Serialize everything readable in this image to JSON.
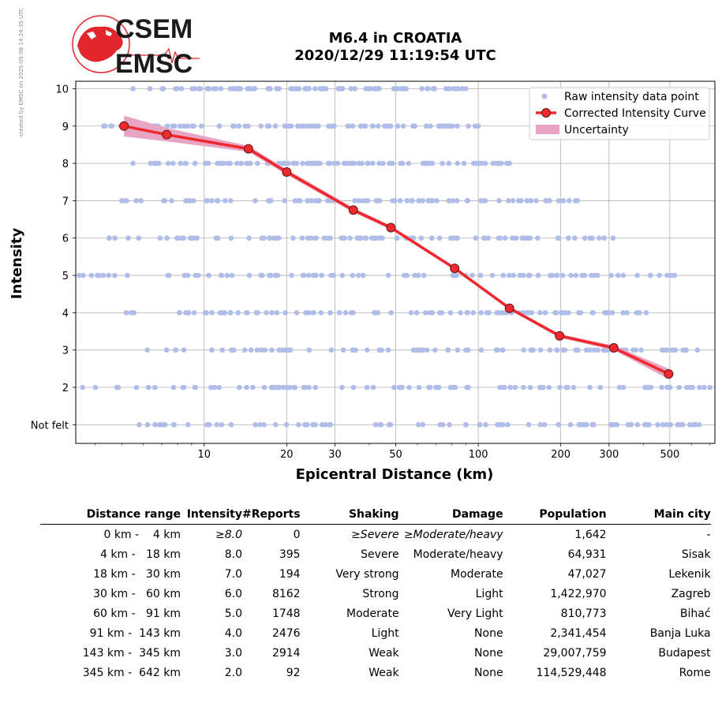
{
  "title_line1": "M6.4 in CROATIA",
  "title_line2": "2020/12/29 11:19:54 UTC",
  "logo_text_top": "CSEM",
  "logo_text_bottom": "EMSC",
  "creator_note": "created by EMSC on 2025-05-08 14:24:35 UTC",
  "colors": {
    "raw_points": "#b0bde8",
    "curve": "#f0282d",
    "uncertainty": "#e8a5c3",
    "marker_edge": "#5a1a1a",
    "logo_red": "#e3262b"
  },
  "chart_data": {
    "type": "line",
    "xlabel": "Epicentral Distance (km)",
    "ylabel": "Intensity",
    "x_scale": "log",
    "xlim": [
      3.4,
      730
    ],
    "ylim": [
      0.5,
      10.2
    ],
    "x_ticks": [
      10,
      20,
      30,
      50,
      100,
      200,
      300,
      500
    ],
    "y_ticks": [
      {
        "value": 1,
        "label": "Not felt"
      },
      {
        "value": 2,
        "label": "2"
      },
      {
        "value": 3,
        "label": "3"
      },
      {
        "value": 4,
        "label": "4"
      },
      {
        "value": 5,
        "label": "5"
      },
      {
        "value": 6,
        "label": "6"
      },
      {
        "value": 7,
        "label": "7"
      },
      {
        "value": 8,
        "label": "8"
      },
      {
        "value": 9,
        "label": "9"
      },
      {
        "value": 10,
        "label": "10"
      }
    ],
    "grid": true,
    "legend_position": "top-right",
    "legend": [
      "Raw intensity data point",
      "Corrected Intensity Curve",
      "Uncertainty"
    ],
    "raw_points": [
      {
        "y": 10,
        "x_min": 5.5,
        "x_max": 90
      },
      {
        "y": 9,
        "x_min": 4.3,
        "x_max": 100
      },
      {
        "y": 8,
        "x_min": 5.5,
        "x_max": 130
      },
      {
        "y": 7,
        "x_min": 5.0,
        "x_max": 230
      },
      {
        "y": 6,
        "x_min": 4.5,
        "x_max": 310
      },
      {
        "y": 5,
        "x_min": 3.5,
        "x_max": 520
      },
      {
        "y": 4,
        "x_min": 5.2,
        "x_max": 410
      },
      {
        "y": 3,
        "x_min": 6.2,
        "x_max": 630
      },
      {
        "y": 2,
        "x_min": 3.6,
        "x_max": 700
      },
      {
        "y": 1,
        "x_min": 5.8,
        "x_max": 640
      }
    ],
    "series": [
      {
        "name": "Corrected Intensity Curve",
        "x": [
          5.1,
          7.3,
          14.5,
          20.0,
          35.0,
          48.0,
          82.0,
          130.0,
          198.0,
          312.0,
          495.0
        ],
        "y": [
          9.0,
          8.77,
          8.39,
          7.77,
          6.75,
          6.28,
          5.19,
          4.12,
          3.38,
          3.06,
          2.36
        ],
        "upper": [
          9.28,
          8.95,
          8.47,
          7.84,
          6.81,
          6.33,
          5.23,
          4.16,
          3.43,
          3.12,
          2.5
        ],
        "lower": [
          8.72,
          8.59,
          8.31,
          7.7,
          6.69,
          6.23,
          5.15,
          4.08,
          3.33,
          3.0,
          2.22
        ]
      }
    ]
  },
  "table": {
    "headers": [
      "Distance range",
      "Intensity",
      "#Reports",
      "Shaking",
      "Damage",
      "Population",
      "Main city"
    ],
    "rows": [
      {
        "distance": "0 km -    4 km",
        "intensity": "≥8.0",
        "reports": "0",
        "shaking": "≥Severe",
        "damage": "≥Moderate/heavy",
        "population": "1,642",
        "city": "-"
      },
      {
        "distance": "4 km -   18 km",
        "intensity": "8.0",
        "reports": "395",
        "shaking": "Severe",
        "damage": "Moderate/heavy",
        "population": "64,931",
        "city": "Sisak"
      },
      {
        "distance": "18 km -   30 km",
        "intensity": "7.0",
        "reports": "194",
        "shaking": "Very strong",
        "damage": "Moderate",
        "population": "47,027",
        "city": "Lekenik"
      },
      {
        "distance": "30 km -   60 km",
        "intensity": "6.0",
        "reports": "8162",
        "shaking": "Strong",
        "damage": "Light",
        "population": "1,422,970",
        "city": "Zagreb"
      },
      {
        "distance": "60 km -   91 km",
        "intensity": "5.0",
        "reports": "1748",
        "shaking": "Moderate",
        "damage": "Very Light",
        "population": "810,773",
        "city": "Bihać"
      },
      {
        "distance": "91 km -  143 km",
        "intensity": "4.0",
        "reports": "2476",
        "shaking": "Light",
        "damage": "None",
        "population": "2,341,454",
        "city": "Banja Luka"
      },
      {
        "distance": "143 km -  345 km",
        "intensity": "3.0",
        "reports": "2914",
        "shaking": "Weak",
        "damage": "None",
        "population": "29,007,759",
        "city": "Budapest"
      },
      {
        "distance": "345 km -  642 km",
        "intensity": "2.0",
        "reports": "92",
        "shaking": "Weak",
        "damage": "None",
        "population": "114,529,448",
        "city": "Rome"
      }
    ]
  }
}
